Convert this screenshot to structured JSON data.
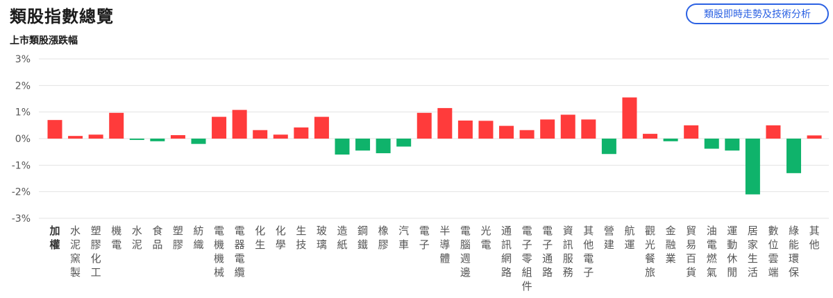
{
  "header": {
    "title": "類股指數總覽",
    "subtitle": "上市類股漲跌幅",
    "button_label": "類股即時走勢及技術分析"
  },
  "colors": {
    "up": "#ff3b3b",
    "down": "#0fb36b",
    "grid": "#e3e3e3",
    "axis_text": "#555555",
    "accent": "#2b61e3"
  },
  "chart_data": {
    "type": "bar",
    "title": "",
    "xlabel": "",
    "ylabel": "",
    "ylim": [
      -3,
      3
    ],
    "yticks": [
      "3%",
      "2%",
      "1%",
      "0%",
      "-1%",
      "-2%",
      "-3%"
    ],
    "grid": true,
    "categories": [
      "加權",
      "水泥窯製",
      "塑膠化工",
      "機電",
      "水泥",
      "食品",
      "塑膠",
      "紡織",
      "電機機械",
      "電器電纜",
      "化生",
      "化學",
      "生技",
      "玻璃",
      "造紙",
      "鋼鐵",
      "橡膠",
      "汽車",
      "電子",
      "半導體",
      "電腦週邊",
      "光電",
      "通訊網路",
      "電子零組件",
      "電子通路",
      "資訊服務",
      "其他電子",
      "營建",
      "航運",
      "觀光餐旅",
      "金融業",
      "貿易百貨",
      "油電燃氣",
      "運動休閒",
      "居家生活",
      "數位雲端",
      "綠能環保",
      "其他"
    ],
    "values": [
      0.7,
      0.1,
      0.15,
      0.97,
      -0.05,
      -0.1,
      0.13,
      -0.2,
      0.82,
      1.08,
      0.32,
      0.15,
      0.42,
      0.82,
      -0.6,
      -0.45,
      -0.55,
      -0.3,
      0.97,
      1.15,
      0.68,
      0.67,
      0.48,
      0.32,
      0.72,
      0.9,
      0.72,
      -0.58,
      1.55,
      0.18,
      -0.1,
      0.5,
      -0.38,
      -0.45,
      -2.1,
      0.5,
      -1.3,
      0.12
    ]
  }
}
